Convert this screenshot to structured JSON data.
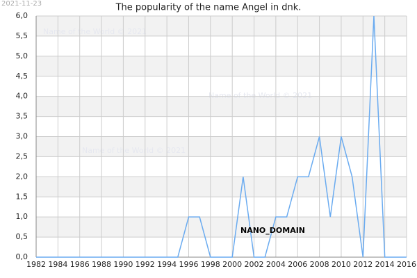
{
  "chart_data": {
    "type": "line",
    "title": "The popularity of the name Angel in dnk.",
    "date": "2021-11-23",
    "watermarks": [
      "Name of the World © 2021",
      "Name of the World © 2021",
      "Name of the World © 2021"
    ],
    "annotation": "NANO_DOMAIN",
    "x": [
      1982,
      1983,
      1984,
      1985,
      1986,
      1987,
      1988,
      1989,
      1990,
      1991,
      1992,
      1993,
      1994,
      1995,
      1996,
      1997,
      1998,
      1999,
      2000,
      2001,
      2002,
      2003,
      2004,
      2005,
      2006,
      2007,
      2008,
      2009,
      2010,
      2011,
      2012,
      2013,
      2014,
      2015,
      2016
    ],
    "values": [
      0,
      0,
      0,
      0,
      0,
      0,
      0,
      0,
      0,
      0,
      0,
      0,
      0,
      0,
      1,
      1,
      0,
      0,
      0,
      2,
      0,
      0,
      1,
      1,
      2,
      2,
      3,
      1,
      3,
      2,
      0,
      6,
      0,
      0,
      0
    ],
    "color": "#6aabf0",
    "xlim": [
      1982,
      2016
    ],
    "xticks": [
      1982,
      1984,
      1986,
      1988,
      1990,
      1992,
      1994,
      1996,
      1998,
      2000,
      2002,
      2004,
      2006,
      2008,
      2010,
      2012,
      2014,
      2016
    ],
    "ylim": [
      0,
      6
    ],
    "yticks": [
      {
        "value": 0,
        "label": "0,0"
      },
      {
        "value": 0.5,
        "label": "0,5"
      },
      {
        "value": 1,
        "label": "1,0"
      },
      {
        "value": 1.5,
        "label": "1,5"
      },
      {
        "value": 2,
        "label": "2,0"
      },
      {
        "value": 2.5,
        "label": "2,5"
      },
      {
        "value": 3,
        "label": "3,0"
      },
      {
        "value": 3.5,
        "label": "3,5"
      },
      {
        "value": 4,
        "label": "4,0"
      },
      {
        "value": 4.5,
        "label": "4,5"
      },
      {
        "value": 5,
        "label": "5,0"
      },
      {
        "value": 5.5,
        "label": "5,5"
      },
      {
        "value": 6,
        "label": "6,0"
      }
    ],
    "grid": true
  }
}
